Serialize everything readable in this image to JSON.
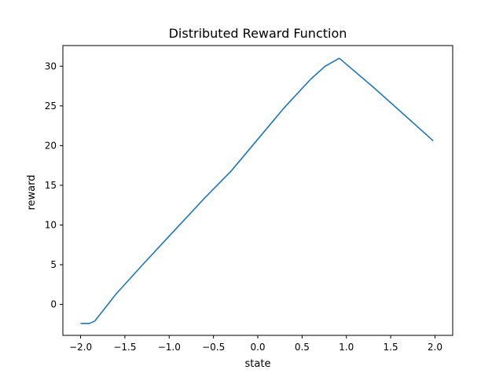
{
  "chart_data": {
    "type": "line",
    "title": "Distributed Reward Function",
    "xlabel": "state",
    "ylabel": "reward",
    "xlim": [
      -2.2,
      2.2
    ],
    "ylim": [
      -3.9,
      32.6
    ],
    "xticks": [
      -2.0,
      -1.5,
      -1.0,
      -0.5,
      0.0,
      0.5,
      1.0,
      1.5,
      2.0
    ],
    "xtick_labels": [
      "−2.0",
      "−1.5",
      "−1.0",
      "−0.5",
      "0.0",
      "0.5",
      "1.0",
      "1.5",
      "2.0"
    ],
    "yticks": [
      0,
      5,
      10,
      15,
      20,
      25,
      30
    ],
    "ytick_labels": [
      "0",
      "5",
      "10",
      "15",
      "20",
      "25",
      "30"
    ],
    "grid": false,
    "series": [
      {
        "color": "#1f77b4",
        "x": [
          -2.0,
          -1.9,
          -1.84,
          -1.6,
          -1.3,
          -1.05,
          -0.6,
          -0.3,
          0.0,
          0.3,
          0.6,
          0.76,
          0.92,
          1.3,
          1.6,
          1.98
        ],
        "y": [
          -2.4,
          -2.4,
          -2.1,
          1.3,
          5.0,
          8.0,
          13.4,
          16.8,
          20.8,
          24.8,
          28.4,
          30.0,
          31.0,
          27.4,
          24.4,
          20.6
        ]
      }
    ]
  }
}
